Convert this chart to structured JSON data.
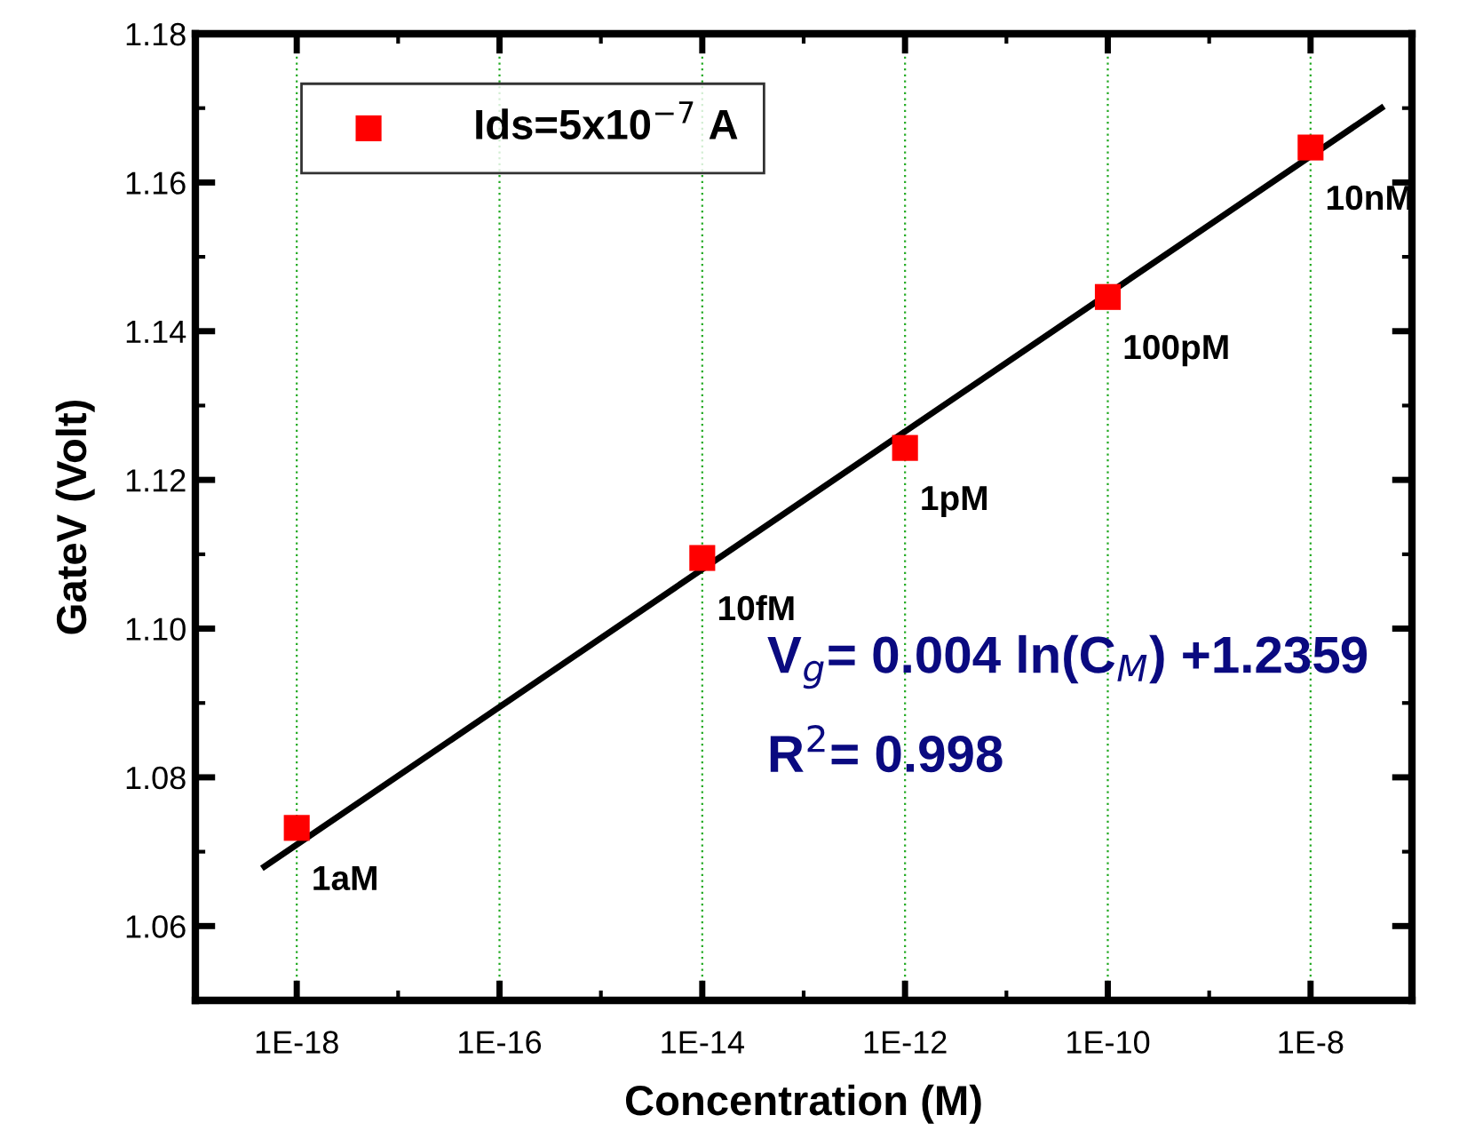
{
  "chart_data": {
    "type": "scatter",
    "xlabel": "Concentration (M)",
    "ylabel": "GateV (Volt)",
    "log": "x",
    "xlim": [
      1e-19,
      1e-07
    ],
    "ylim": [
      1.05,
      1.18
    ],
    "xticks": [
      {
        "value": 1e-18,
        "label": "1E-18"
      },
      {
        "value": 1e-16,
        "label": "1E-16"
      },
      {
        "value": 1e-14,
        "label": "1E-14"
      },
      {
        "value": 1e-12,
        "label": "1E-12"
      },
      {
        "value": 1e-10,
        "label": "1E-10"
      },
      {
        "value": 1e-08,
        "label": "1E-8"
      }
    ],
    "yticks": [
      {
        "value": 1.06,
        "label": "1.06"
      },
      {
        "value": 1.08,
        "label": "1.08"
      },
      {
        "value": 1.1,
        "label": "1.10"
      },
      {
        "value": 1.12,
        "label": "1.12"
      },
      {
        "value": 1.14,
        "label": "1.14"
      },
      {
        "value": 1.16,
        "label": "1.16"
      },
      {
        "value": 1.18,
        "label": "1.18"
      }
    ],
    "grid": "x",
    "legend": "top left",
    "series": [
      {
        "name": "Ids=5x10$^{−7}$ A",
        "color": "#ff0000",
        "marker": "square",
        "x": [
          1e-18,
          1e-14,
          1e-12,
          1e-10,
          1e-08
        ],
        "values": [
          1.0732,
          1.1095,
          1.1243,
          1.1446,
          1.1647
        ]
      },
      {
        "type": "line",
        "color": "#000000",
        "line_style": "solid",
        "x": [
          4.8e-19,
          5e-08
        ],
        "values": [
          1.068,
          1.17
        ]
      }
    ],
    "annotations": [
      {
        "text": "1aM",
        "x": 1e-18,
        "y": 1.0732
      },
      {
        "text": "10fM",
        "x": 1e-14,
        "y": 1.1095
      },
      {
        "text": "1pM",
        "x": 1e-12,
        "y": 1.1243
      },
      {
        "text": "100pM",
        "x": 1e-10,
        "y": 1.1446
      },
      {
        "text": "10nM",
        "x": 1e-08,
        "y": 1.1647
      },
      "V$_{g}$= 0.004 ln(C$_{M}$) +1.2359",
      "R$^{2}$= 0.998"
    ]
  }
}
